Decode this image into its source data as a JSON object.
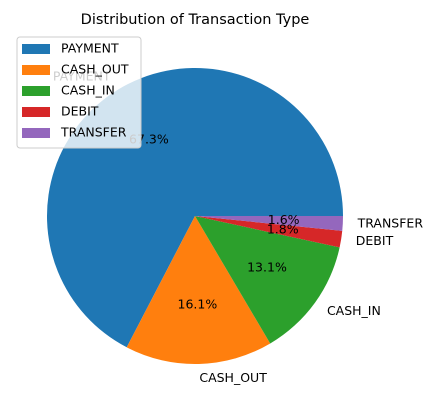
{
  "chart_data": {
    "type": "pie",
    "title": "Distribution of Transaction Type",
    "categories": [
      "PAYMENT",
      "CASH_OUT",
      "CASH_IN",
      "DEBIT",
      "TRANSFER"
    ],
    "values": [
      67.3,
      16.1,
      13.1,
      1.8,
      1.6
    ],
    "value_labels": [
      "67.3%",
      "16.1%",
      "13.1%",
      "1.8%",
      "1.6%"
    ],
    "colors": [
      "#1f77b4",
      "#ff7f0e",
      "#2ca02c",
      "#d62728",
      "#9467bd"
    ],
    "legend_position": "upper-left",
    "start_angle": 0,
    "direction": "counterclockwise"
  }
}
